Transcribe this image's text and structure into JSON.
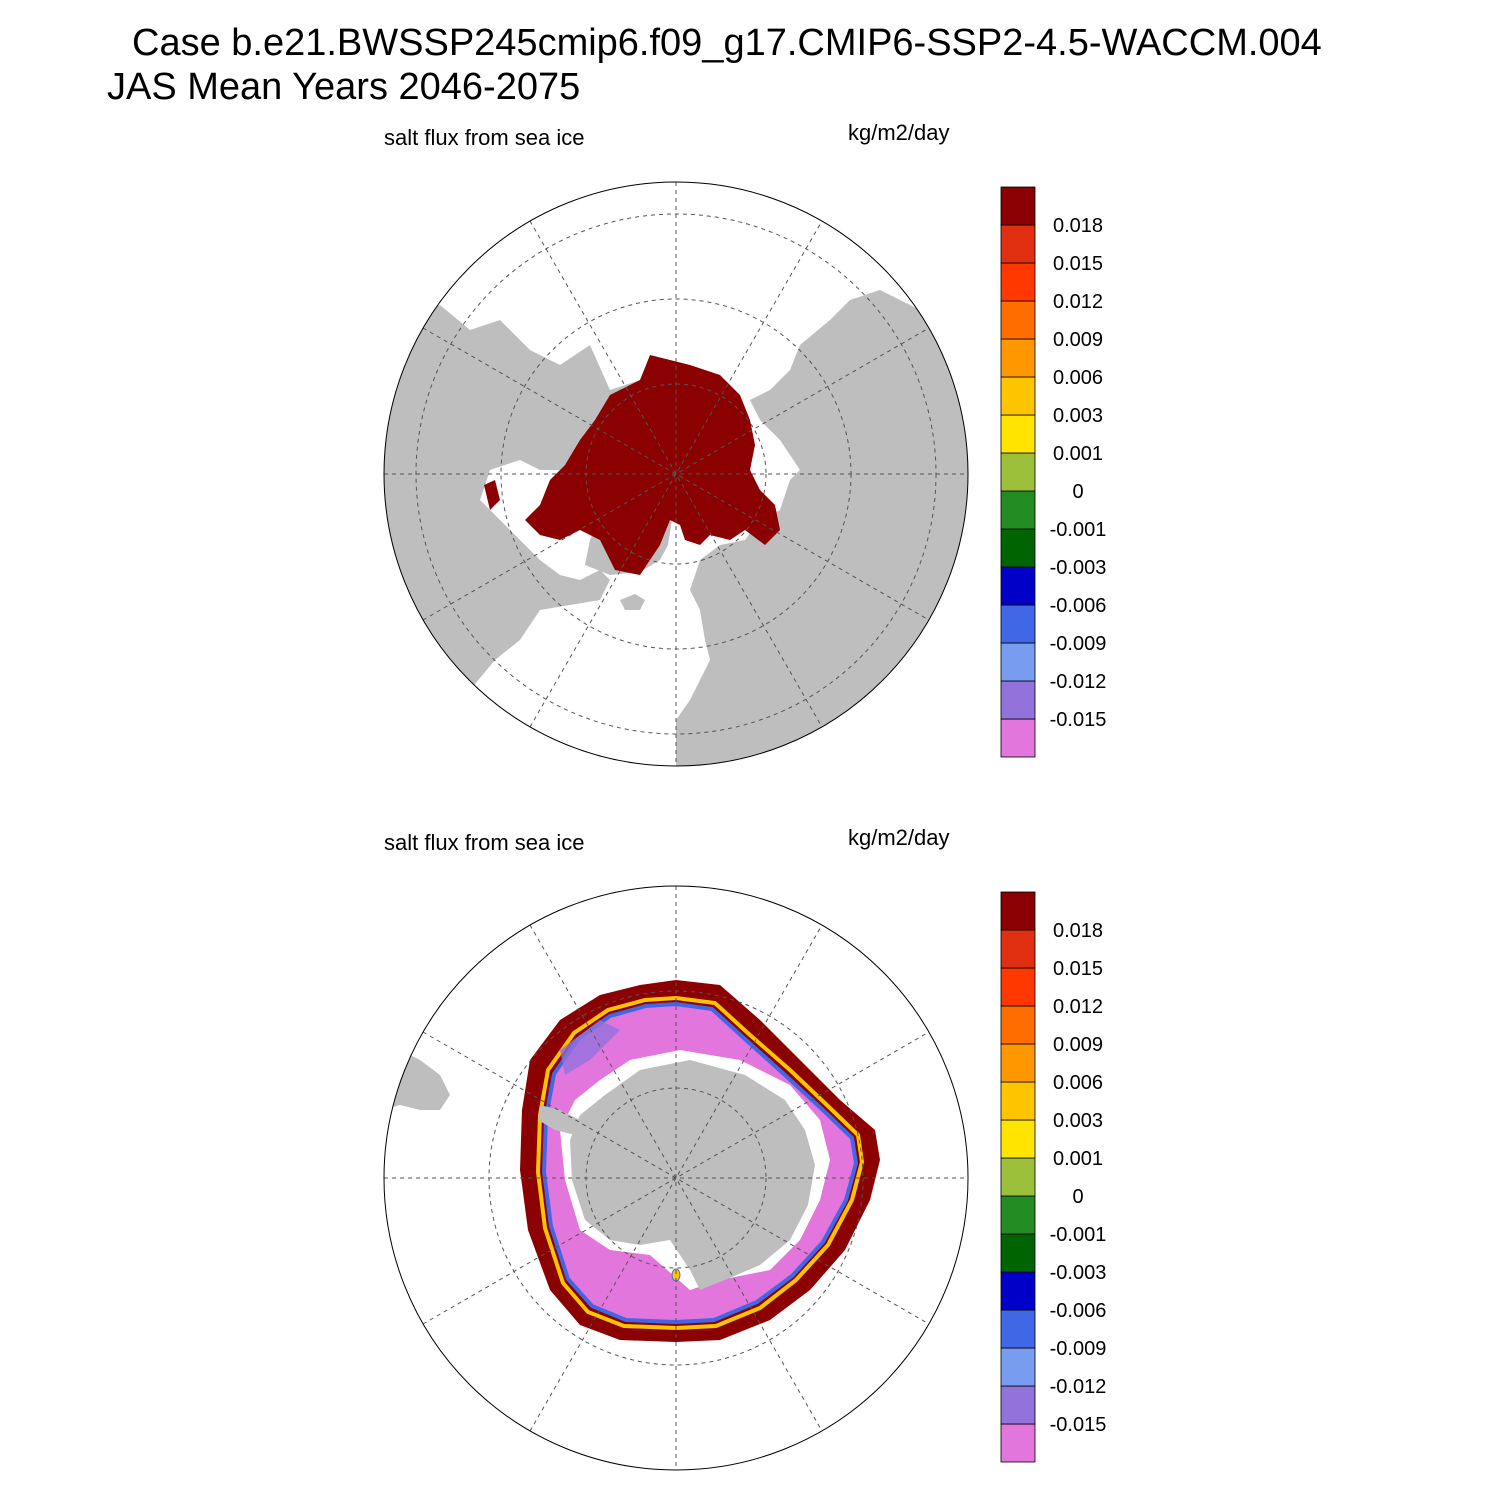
{
  "header": {
    "case_line": "Case b.e21.BWSSP245cmip6.f09_g17.CMIP6-SSP2-4.5-WACCM.004",
    "period_line": "JAS Mean   Years 2046-2075"
  },
  "panels": [
    {
      "id": "north",
      "variable": "salt flux from sea ice",
      "units": "kg/m2/day",
      "hemisphere": "north"
    },
    {
      "id": "south",
      "variable": "salt flux from sea ice",
      "units": "kg/m2/day",
      "hemisphere": "south"
    }
  ],
  "colorbar": {
    "colors": [
      "#e276dc",
      "#9372dc",
      "#789cf0",
      "#4068e6",
      "#0000c8",
      "#006400",
      "#228b22",
      "#9cc03c",
      "#ffe400",
      "#ffc400",
      "#ff9800",
      "#ff6c00",
      "#ff3800",
      "#e02e10",
      "#8b0000"
    ],
    "labels": [
      "-0.015",
      "-0.012",
      "-0.009",
      "-0.006",
      "-0.003",
      "-0.001",
      "0",
      "0.001",
      "0.003",
      "0.006",
      "0.009",
      "0.012",
      "0.015",
      "0.018"
    ]
  },
  "colors": {
    "land": "#bebebe",
    "ocean": "#ffffff",
    "grid": "#555555"
  }
}
